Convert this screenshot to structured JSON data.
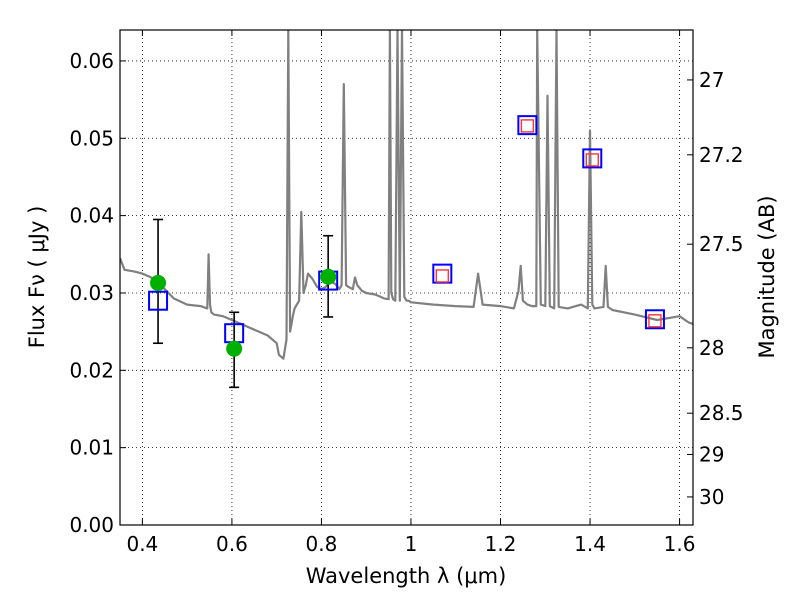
{
  "chart_data": {
    "type": "scatter",
    "xlabel": "Wavelength  λ (μm)",
    "ylabel": "Flux  Fν  ( μJy )",
    "y2label": "Magnitude (AB)",
    "xlim": [
      0.35,
      1.63
    ],
    "ylim": [
      0.0,
      0.064
    ],
    "grid": true,
    "x_ticks": [
      0.4,
      0.6,
      0.8,
      1.0,
      1.2,
      1.4,
      1.6
    ],
    "x_tick_labels": [
      "0.4",
      "0.6",
      "0.8",
      "1",
      "1.2",
      "1.4",
      "1.6"
    ],
    "y_ticks": [
      0.0,
      0.01,
      0.02,
      0.03,
      0.04,
      0.05,
      0.06
    ],
    "y_tick_labels": [
      "0.00",
      "0.01",
      "0.02",
      "0.03",
      "0.04",
      "0.05",
      "0.06"
    ],
    "y2_ticks": [
      27,
      27.2,
      27.5,
      28,
      28.5,
      29,
      30
    ],
    "y2_tick_labels": [
      "27",
      "27.2",
      "27.5",
      "28",
      "28.5",
      "29",
      "30"
    ],
    "series": [
      {
        "kind": "line",
        "color": "#808080",
        "x": [
          0.35,
          0.36,
          0.38,
          0.4,
          0.42,
          0.43,
          0.45,
          0.47,
          0.5,
          0.53,
          0.545,
          0.548,
          0.551,
          0.554,
          0.56,
          0.58,
          0.6,
          0.62,
          0.64,
          0.66,
          0.68,
          0.7,
          0.705,
          0.715,
          0.722,
          0.726,
          0.73,
          0.733,
          0.736,
          0.74,
          0.75,
          0.755,
          0.76,
          0.765,
          0.77,
          0.78,
          0.79,
          0.8,
          0.81,
          0.82,
          0.83,
          0.84,
          0.845,
          0.85,
          0.855,
          0.86,
          0.87,
          0.875,
          0.88,
          0.89,
          0.9,
          0.92,
          0.94,
          0.95,
          0.953,
          0.956,
          0.96,
          0.965,
          0.97,
          0.975,
          0.98,
          0.985,
          0.99,
          0.995,
          1.0,
          1.05,
          1.1,
          1.14,
          1.15,
          1.16,
          1.2,
          1.23,
          1.24,
          1.245,
          1.25,
          1.26,
          1.27,
          1.28,
          1.282,
          1.29,
          1.3,
          1.305,
          1.31,
          1.32,
          1.325,
          1.33,
          1.35,
          1.38,
          1.395,
          1.4,
          1.405,
          1.41,
          1.43,
          1.435,
          1.44,
          1.45,
          1.5,
          1.55,
          1.6,
          1.62,
          1.63
        ],
        "y": [
          0.0345,
          0.033,
          0.0328,
          0.0325,
          0.032,
          0.0313,
          0.0305,
          0.0293,
          0.0285,
          0.0283,
          0.028,
          0.035,
          0.0285,
          0.0275,
          0.0272,
          0.027,
          0.0265,
          0.026,
          0.0255,
          0.025,
          0.0245,
          0.0235,
          0.022,
          0.0215,
          0.024,
          0.064,
          0.025,
          0.026,
          0.027,
          0.028,
          0.029,
          0.0405,
          0.03,
          0.031,
          0.0325,
          0.0318,
          0.0308,
          0.0305,
          0.0308,
          0.0315,
          0.0312,
          0.0305,
          0.031,
          0.057,
          0.031,
          0.0308,
          0.0305,
          0.032,
          0.031,
          0.0303,
          0.03,
          0.0298,
          0.0293,
          0.0292,
          0.064,
          0.03,
          0.0292,
          0.029,
          0.064,
          0.029,
          0.064,
          0.0295,
          0.029,
          0.029,
          0.0288,
          0.0285,
          0.0283,
          0.0282,
          0.0325,
          0.0285,
          0.0283,
          0.028,
          0.0302,
          0.0335,
          0.029,
          0.0285,
          0.0283,
          0.0283,
          0.064,
          0.0285,
          0.0283,
          0.0555,
          0.0283,
          0.028,
          0.064,
          0.0282,
          0.028,
          0.0285,
          0.028,
          0.051,
          0.0285,
          0.028,
          0.0282,
          0.0335,
          0.0282,
          0.0278,
          0.0272,
          0.0265,
          0.027,
          0.0262,
          0.026
        ]
      },
      {
        "kind": "points-green",
        "color": "#00b000",
        "x": [
          0.435,
          0.605,
          0.815
        ],
        "y": [
          0.0313,
          0.0228,
          0.0321
        ],
        "err_low": [
          0.0078,
          0.005,
          0.0052
        ],
        "err_high": [
          0.0082,
          0.0047,
          0.0053
        ]
      },
      {
        "kind": "squares-blue",
        "color": "#0000ff",
        "x": [
          0.435,
          0.605,
          0.815,
          1.07,
          1.26,
          1.405,
          1.545
        ],
        "y": [
          0.029,
          0.0248,
          0.0316,
          0.0325,
          0.0517,
          0.0474,
          0.0266
        ]
      },
      {
        "kind": "squares-red",
        "color": "#ff3333",
        "x": [
          1.07,
          1.26,
          1.405,
          1.545
        ],
        "y": [
          0.0322,
          0.0516,
          0.0472,
          0.0264
        ]
      }
    ]
  }
}
